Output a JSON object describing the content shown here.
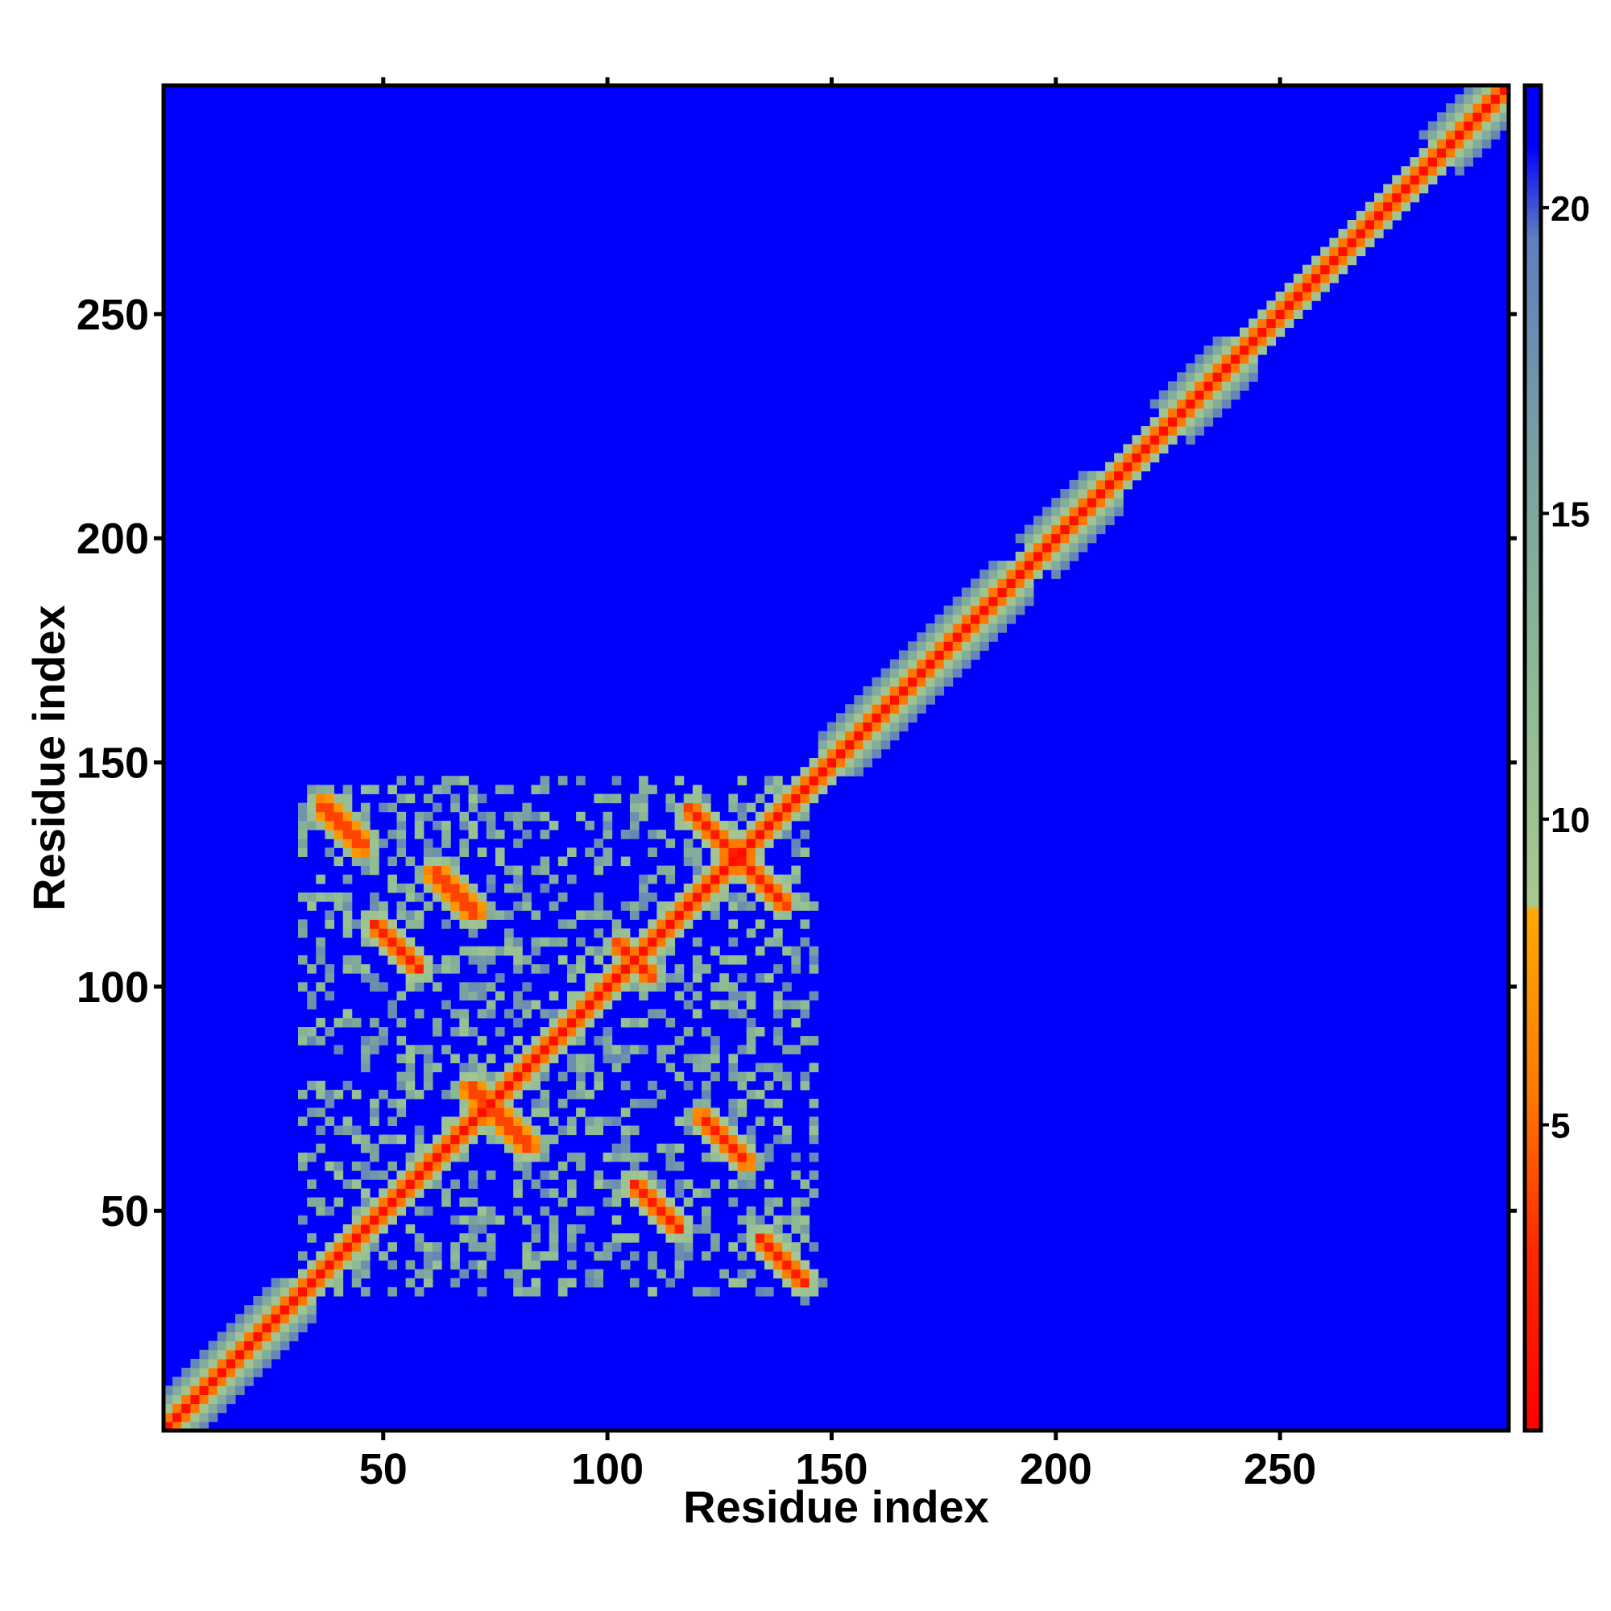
{
  "chart_data": {
    "type": "heatmap",
    "title": "",
    "xlabel": "Residue index",
    "ylabel": "Residue index",
    "xlim": [
      1,
      301
    ],
    "ylim": [
      1,
      301
    ],
    "xticks": [
      50,
      100,
      150,
      200,
      250
    ],
    "yticks": [
      50,
      100,
      150,
      200,
      250
    ],
    "xtick_labels": [
      "50",
      "100",
      "150",
      "200",
      "250"
    ],
    "ytick_labels": [
      "50",
      "100",
      "150",
      "200",
      "250"
    ],
    "colorbar": {
      "range": [
        0,
        22
      ],
      "ticks": [
        5,
        10,
        15,
        20
      ],
      "tick_labels": [
        "5",
        "10",
        "15",
        "20"
      ],
      "stops": [
        {
          "value": 0,
          "color": "#ff0000"
        },
        {
          "value": 3,
          "color": "#ff2a00"
        },
        {
          "value": 5.5,
          "color": "#ff7a00"
        },
        {
          "value": 8.5,
          "color": "#ffa800"
        },
        {
          "value": 8.6,
          "color": "#a8c890"
        },
        {
          "value": 12,
          "color": "#8fbb94"
        },
        {
          "value": 16,
          "color": "#7aa0a0"
        },
        {
          "value": 19.5,
          "color": "#5f7fbe"
        },
        {
          "value": 21,
          "color": "#0000ff"
        },
        {
          "value": 22,
          "color": "#0000ff"
        }
      ]
    },
    "background_color": "#0000ff",
    "description_of_structure": {
      "main_diagonal": {
        "from": 1,
        "to": 301,
        "color": "red"
      },
      "diagonal_broadening": [
        [
          1,
          30
        ],
        [
          150,
          190
        ],
        [
          195,
          210
        ],
        [
          225,
          240
        ],
        [
          285,
          301
        ]
      ],
      "off_diagonal_antiparallel_contacts": [
        {
          "center": [
            75,
            70
          ],
          "length": 20
        },
        {
          "center": [
            128,
            128
          ],
          "length": 30
        },
        {
          "center": [
            65,
            120
          ],
          "length": 14
        },
        {
          "center": [
            52,
            108
          ],
          "length": 14
        },
        {
          "center": [
            40,
            135
          ],
          "length": 14
        },
        {
          "center": [
            110,
            50
          ],
          "length": 14
        },
        {
          "center": [
            125,
            65
          ],
          "length": 14
        },
        {
          "center": [
            138,
            38
          ],
          "length": 14
        },
        {
          "center": [
            105,
            105
          ],
          "length": 10
        }
      ],
      "contact_block_region": {
        "x": [
          30,
          145
        ],
        "y": [
          30,
          145
        ]
      }
    }
  }
}
